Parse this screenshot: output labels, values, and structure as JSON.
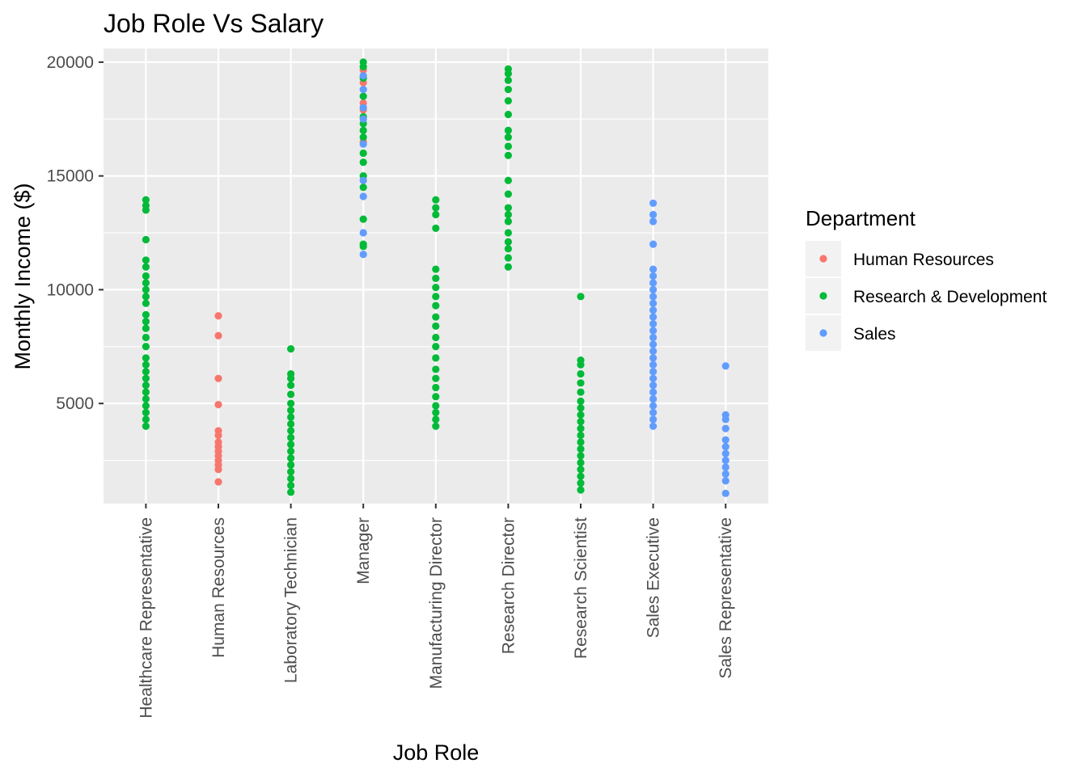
{
  "chart_data": {
    "type": "scatter",
    "title": "Job Role Vs Salary",
    "xlabel": "Job Role",
    "ylabel": "Monthly Income ($)",
    "ylim": [
      600,
      20600
    ],
    "yticks": [
      5000,
      10000,
      15000,
      20000
    ],
    "grid": true,
    "legend_placement": "right",
    "legend_title": "Department",
    "categories": [
      "Healthcare Representative",
      "Human Resources",
      "Laboratory Technician",
      "Manager",
      "Manufacturing Director",
      "Research Director",
      "Research Scientist",
      "Sales Executive",
      "Sales Representative"
    ],
    "series": [
      {
        "name": "Human Resources",
        "color": "#F8766D",
        "points": [
          [
            "Human Resources",
            1555
          ],
          [
            "Human Resources",
            2100
          ],
          [
            "Human Resources",
            2300
          ],
          [
            "Human Resources",
            2500
          ],
          [
            "Human Resources",
            2700
          ],
          [
            "Human Resources",
            2900
          ],
          [
            "Human Resources",
            3100
          ],
          [
            "Human Resources",
            3300
          ],
          [
            "Human Resources",
            3600
          ],
          [
            "Human Resources",
            3800
          ],
          [
            "Human Resources",
            4950
          ],
          [
            "Human Resources",
            6100
          ],
          [
            "Human Resources",
            7980
          ],
          [
            "Human Resources",
            8850
          ],
          [
            "Manager",
            16500
          ],
          [
            "Manager",
            17900
          ],
          [
            "Manager",
            18200
          ],
          [
            "Manager",
            19100
          ],
          [
            "Manager",
            19650
          ]
        ]
      },
      {
        "name": "Research & Development",
        "color": "#00BA38",
        "points": [
          [
            "Healthcare Representative",
            4000
          ],
          [
            "Healthcare Representative",
            4300
          ],
          [
            "Healthcare Representative",
            4600
          ],
          [
            "Healthcare Representative",
            4900
          ],
          [
            "Healthcare Representative",
            5200
          ],
          [
            "Healthcare Representative",
            5500
          ],
          [
            "Healthcare Representative",
            5800
          ],
          [
            "Healthcare Representative",
            6100
          ],
          [
            "Healthcare Representative",
            6400
          ],
          [
            "Healthcare Representative",
            6700
          ],
          [
            "Healthcare Representative",
            7000
          ],
          [
            "Healthcare Representative",
            7500
          ],
          [
            "Healthcare Representative",
            7900
          ],
          [
            "Healthcare Representative",
            8300
          ],
          [
            "Healthcare Representative",
            8600
          ],
          [
            "Healthcare Representative",
            8900
          ],
          [
            "Healthcare Representative",
            9400
          ],
          [
            "Healthcare Representative",
            9700
          ],
          [
            "Healthcare Representative",
            10000
          ],
          [
            "Healthcare Representative",
            10300
          ],
          [
            "Healthcare Representative",
            10600
          ],
          [
            "Healthcare Representative",
            11000
          ],
          [
            "Healthcare Representative",
            11300
          ],
          [
            "Healthcare Representative",
            12200
          ],
          [
            "Healthcare Representative",
            13500
          ],
          [
            "Healthcare Representative",
            13700
          ],
          [
            "Healthcare Representative",
            13950
          ],
          [
            "Laboratory Technician",
            1100
          ],
          [
            "Laboratory Technician",
            1400
          ],
          [
            "Laboratory Technician",
            1700
          ],
          [
            "Laboratory Technician",
            2000
          ],
          [
            "Laboratory Technician",
            2300
          ],
          [
            "Laboratory Technician",
            2600
          ],
          [
            "Laboratory Technician",
            2900
          ],
          [
            "Laboratory Technician",
            3200
          ],
          [
            "Laboratory Technician",
            3500
          ],
          [
            "Laboratory Technician",
            3800
          ],
          [
            "Laboratory Technician",
            4100
          ],
          [
            "Laboratory Technician",
            4400
          ],
          [
            "Laboratory Technician",
            4700
          ],
          [
            "Laboratory Technician",
            5000
          ],
          [
            "Laboratory Technician",
            5400
          ],
          [
            "Laboratory Technician",
            5800
          ],
          [
            "Laboratory Technician",
            6100
          ],
          [
            "Laboratory Technician",
            6300
          ],
          [
            "Laboratory Technician",
            7400
          ],
          [
            "Manager",
            11900
          ],
          [
            "Manager",
            12000
          ],
          [
            "Manager",
            13100
          ],
          [
            "Manager",
            14500
          ],
          [
            "Manager",
            15000
          ],
          [
            "Manager",
            15600
          ],
          [
            "Manager",
            16000
          ],
          [
            "Manager",
            16700
          ],
          [
            "Manager",
            17000
          ],
          [
            "Manager",
            17300
          ],
          [
            "Manager",
            17600
          ],
          [
            "Manager",
            18500
          ],
          [
            "Manager",
            19300
          ],
          [
            "Manager",
            19800
          ],
          [
            "Manager",
            20000
          ],
          [
            "Manufacturing Director",
            4000
          ],
          [
            "Manufacturing Director",
            4300
          ],
          [
            "Manufacturing Director",
            4600
          ],
          [
            "Manufacturing Director",
            4900
          ],
          [
            "Manufacturing Director",
            5300
          ],
          [
            "Manufacturing Director",
            5700
          ],
          [
            "Manufacturing Director",
            6100
          ],
          [
            "Manufacturing Director",
            6500
          ],
          [
            "Manufacturing Director",
            7000
          ],
          [
            "Manufacturing Director",
            7500
          ],
          [
            "Manufacturing Director",
            7900
          ],
          [
            "Manufacturing Director",
            8400
          ],
          [
            "Manufacturing Director",
            8800
          ],
          [
            "Manufacturing Director",
            9300
          ],
          [
            "Manufacturing Director",
            9700
          ],
          [
            "Manufacturing Director",
            10100
          ],
          [
            "Manufacturing Director",
            10500
          ],
          [
            "Manufacturing Director",
            10900
          ],
          [
            "Manufacturing Director",
            12700
          ],
          [
            "Manufacturing Director",
            13300
          ],
          [
            "Manufacturing Director",
            13600
          ],
          [
            "Manufacturing Director",
            13950
          ],
          [
            "Research Director",
            11000
          ],
          [
            "Research Director",
            11400
          ],
          [
            "Research Director",
            11800
          ],
          [
            "Research Director",
            12100
          ],
          [
            "Research Director",
            12500
          ],
          [
            "Research Director",
            13000
          ],
          [
            "Research Director",
            13300
          ],
          [
            "Research Director",
            13600
          ],
          [
            "Research Director",
            14200
          ],
          [
            "Research Director",
            14800
          ],
          [
            "Research Director",
            15900
          ],
          [
            "Research Director",
            16300
          ],
          [
            "Research Director",
            16700
          ],
          [
            "Research Director",
            17000
          ],
          [
            "Research Director",
            17700
          ],
          [
            "Research Director",
            18300
          ],
          [
            "Research Director",
            18800
          ],
          [
            "Research Director",
            19200
          ],
          [
            "Research Director",
            19500
          ],
          [
            "Research Director",
            19700
          ],
          [
            "Research Scientist",
            1200
          ],
          [
            "Research Scientist",
            1500
          ],
          [
            "Research Scientist",
            1800
          ],
          [
            "Research Scientist",
            2100
          ],
          [
            "Research Scientist",
            2400
          ],
          [
            "Research Scientist",
            2700
          ],
          [
            "Research Scientist",
            3000
          ],
          [
            "Research Scientist",
            3300
          ],
          [
            "Research Scientist",
            3600
          ],
          [
            "Research Scientist",
            3900
          ],
          [
            "Research Scientist",
            4200
          ],
          [
            "Research Scientist",
            4500
          ],
          [
            "Research Scientist",
            4800
          ],
          [
            "Research Scientist",
            5100
          ],
          [
            "Research Scientist",
            5500
          ],
          [
            "Research Scientist",
            5900
          ],
          [
            "Research Scientist",
            6300
          ],
          [
            "Research Scientist",
            6700
          ],
          [
            "Research Scientist",
            6900
          ],
          [
            "Research Scientist",
            9700
          ]
        ]
      },
      {
        "name": "Sales",
        "color": "#619CFF",
        "points": [
          [
            "Manager",
            11550
          ],
          [
            "Manager",
            12500
          ],
          [
            "Manager",
            14100
          ],
          [
            "Manager",
            14800
          ],
          [
            "Manager",
            16400
          ],
          [
            "Manager",
            17500
          ],
          [
            "Manager",
            18000
          ],
          [
            "Manager",
            18800
          ],
          [
            "Manager",
            19400
          ],
          [
            "Sales Executive",
            4000
          ],
          [
            "Sales Executive",
            4300
          ],
          [
            "Sales Executive",
            4600
          ],
          [
            "Sales Executive",
            4900
          ],
          [
            "Sales Executive",
            5200
          ],
          [
            "Sales Executive",
            5500
          ],
          [
            "Sales Executive",
            5800
          ],
          [
            "Sales Executive",
            6100
          ],
          [
            "Sales Executive",
            6400
          ],
          [
            "Sales Executive",
            6700
          ],
          [
            "Sales Executive",
            7000
          ],
          [
            "Sales Executive",
            7300
          ],
          [
            "Sales Executive",
            7600
          ],
          [
            "Sales Executive",
            7900
          ],
          [
            "Sales Executive",
            8200
          ],
          [
            "Sales Executive",
            8500
          ],
          [
            "Sales Executive",
            8800
          ],
          [
            "Sales Executive",
            9100
          ],
          [
            "Sales Executive",
            9400
          ],
          [
            "Sales Executive",
            9700
          ],
          [
            "Sales Executive",
            10000
          ],
          [
            "Sales Executive",
            10300
          ],
          [
            "Sales Executive",
            10600
          ],
          [
            "Sales Executive",
            10900
          ],
          [
            "Sales Executive",
            12000
          ],
          [
            "Sales Executive",
            13000
          ],
          [
            "Sales Executive",
            13300
          ],
          [
            "Sales Executive",
            13800
          ],
          [
            "Sales Representative",
            1050
          ],
          [
            "Sales Representative",
            1600
          ],
          [
            "Sales Representative",
            1900
          ],
          [
            "Sales Representative",
            2200
          ],
          [
            "Sales Representative",
            2500
          ],
          [
            "Sales Representative",
            2800
          ],
          [
            "Sales Representative",
            3100
          ],
          [
            "Sales Representative",
            3400
          ],
          [
            "Sales Representative",
            3900
          ],
          [
            "Sales Representative",
            4300
          ],
          [
            "Sales Representative",
            4500
          ],
          [
            "Sales Representative",
            6650
          ]
        ]
      }
    ]
  }
}
